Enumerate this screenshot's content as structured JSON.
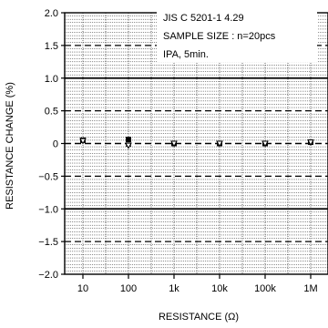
{
  "chart_data": {
    "type": "scatter",
    "title": "",
    "xlabel": "RESISTANCE (Ω)",
    "ylabel": "RESISTANCE  CHANGE (%)",
    "x_scale": "log",
    "x_categories": [
      "10",
      "100",
      "1k",
      "10k",
      "100k",
      "1M"
    ],
    "x": [
      10,
      100,
      1000,
      10000,
      100000,
      1000000
    ],
    "y_ticks": [
      "2.0",
      "1.5",
      "1.0",
      "0.5",
      "0",
      "−0.5",
      "−1.0",
      "−1.5",
      "−2.0"
    ],
    "ylim": [
      -2.0,
      2.0
    ],
    "series": [
      {
        "name": "",
        "marker": "square",
        "values": [
          0.05,
          0.06,
          0.0,
          0.0,
          0.0,
          0.02
        ],
        "err_high": [
          0.06,
          0.07,
          0.01,
          0.01,
          0.01,
          0.03
        ],
        "err_low": [
          0.04,
          0.05,
          -0.01,
          -0.01,
          -0.01,
          0.01
        ]
      },
      {
        "name": "",
        "marker": "triangle-down",
        "values": [
          0.04,
          -0.03,
          0.0,
          0.0,
          0.0,
          0.02
        ],
        "err_high": [
          0.05,
          -0.02,
          0.01,
          0.01,
          0.01,
          0.03
        ],
        "err_low": [
          0.03,
          -0.04,
          -0.01,
          -0.01,
          -0.01,
          0.01
        ]
      }
    ],
    "dashed_limits": [
      1.5,
      0.5,
      -0.5,
      -1.5
    ],
    "solid_limits": [
      1.0,
      -1.0
    ],
    "annotation": [
      "JIS C 5201-1 4.29",
      "SAMPLE SIZE : n=20pcs",
      "IPA, 5min."
    ],
    "grid": true
  }
}
